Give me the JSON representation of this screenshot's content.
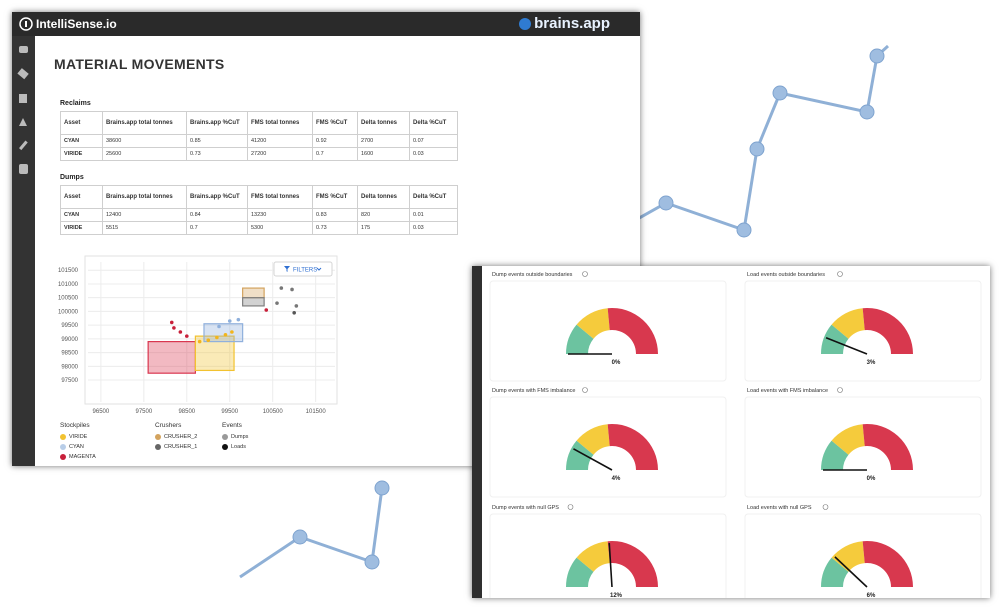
{
  "header": {
    "logo": "IntelliSense.io",
    "brand": "brains.app"
  },
  "page_title": "MATERIAL MOVEMENTS",
  "tables": [
    {
      "title": "Reclaims",
      "columns": [
        "Asset",
        "Brains.app total tonnes",
        "Brains.app %CuT",
        "FMS total tonnes",
        "FMS %CuT",
        "Delta tonnes",
        "Delta %CuT"
      ],
      "rows": [
        [
          "CYAN",
          "38600",
          "0.85",
          "41200",
          "0.92",
          "2700",
          "0.07"
        ],
        [
          "VIRIDE",
          "25600",
          "0.73",
          "27200",
          "0.7",
          "1600",
          "0.03"
        ]
      ]
    },
    {
      "title": "Dumps",
      "columns": [
        "Asset",
        "Brains.app total tonnes",
        "Brains.app %CuT",
        "FMS total tonnes",
        "FMS %CuT",
        "Delta tonnes",
        "Delta %CuT"
      ],
      "rows": [
        [
          "CYAN",
          "12400",
          "0.84",
          "13230",
          "0.83",
          "820",
          "0.01"
        ],
        [
          "VIRIDE",
          "5515",
          "0.7",
          "5300",
          "0.73",
          "175",
          "0.03"
        ]
      ]
    }
  ],
  "scatter": {
    "filter_button": "FILTERS",
    "xlim": [
      96200,
      101950
    ],
    "xticks": [
      96500,
      97500,
      98500,
      99500,
      100500,
      101500
    ],
    "ylim": [
      96700,
      101800
    ],
    "yticks": [
      97500,
      98000,
      98500,
      99000,
      99500,
      100000,
      100500,
      101000,
      101500
    ],
    "regions": [
      {
        "x": [
          97600,
          98700
        ],
        "y": [
          97750,
          98900
        ],
        "color": "#d9364f"
      },
      {
        "x": [
          98700,
          99600
        ],
        "y": [
          97850,
          99100
        ],
        "color": "#f2c230"
      },
      {
        "x": [
          98900,
          99800
        ],
        "y": [
          98900,
          99550
        ],
        "color": "#8fb0dc"
      },
      {
        "x": [
          99800,
          100300
        ],
        "y": [
          100500,
          100850
        ],
        "color": "#d3a35e"
      },
      {
        "x": [
          99800,
          100300
        ],
        "y": [
          100200,
          100500
        ],
        "color": "#7f7f7f"
      }
    ],
    "points": [
      {
        "x": 98200,
        "y": 99400,
        "color": "#c8203a"
      },
      {
        "x": 98350,
        "y": 99250,
        "color": "#c8203a"
      },
      {
        "x": 98500,
        "y": 99100,
        "color": "#c8203a"
      },
      {
        "x": 98150,
        "y": 99600,
        "color": "#c8203a"
      },
      {
        "x": 98800,
        "y": 98900,
        "color": "#f2b51c"
      },
      {
        "x": 99000,
        "y": 98950,
        "color": "#f2b51c"
      },
      {
        "x": 99200,
        "y": 99050,
        "color": "#f2b51c"
      },
      {
        "x": 99400,
        "y": 99150,
        "color": "#f2b51c"
      },
      {
        "x": 99550,
        "y": 99250,
        "color": "#f2b51c"
      },
      {
        "x": 99250,
        "y": 99450,
        "color": "#8fb0dc"
      },
      {
        "x": 99500,
        "y": 99650,
        "color": "#8fb0dc"
      },
      {
        "x": 99700,
        "y": 99700,
        "color": "#8fb0dc"
      },
      {
        "x": 100350,
        "y": 100050,
        "color": "#c8203a"
      },
      {
        "x": 100600,
        "y": 100300,
        "color": "#777777"
      },
      {
        "x": 100950,
        "y": 100800,
        "color": "#777777"
      },
      {
        "x": 101050,
        "y": 100200,
        "color": "#777777"
      },
      {
        "x": 101000,
        "y": 99950,
        "color": "#555555"
      },
      {
        "x": 100700,
        "y": 100850,
        "color": "#777777"
      }
    ],
    "legend": [
      {
        "title": "Stockpiles",
        "items": [
          {
            "label": "VIRIDE",
            "color": "#f2c230"
          },
          {
            "label": "CYAN",
            "color": "#b8cde8"
          },
          {
            "label": "MAGENTA",
            "color": "#c8203a"
          }
        ]
      },
      {
        "title": "Crushers",
        "items": [
          {
            "label": "CRUSHER_2",
            "color": "#d3a35e"
          },
          {
            "label": "CRUSHER_1",
            "color": "#666666"
          }
        ]
      },
      {
        "title": "Events",
        "items": [
          {
            "label": "Dumps",
            "color": "#999999"
          },
          {
            "label": "Loads",
            "color": "#111111"
          }
        ]
      }
    ]
  },
  "gauges": {
    "range": [
      0,
      25
    ],
    "panels": [
      {
        "title": "Dump events outside boundaries",
        "value": 0,
        "value_label": "0%"
      },
      {
        "title": "Load events outside boundaries",
        "value": 3,
        "value_label": "3%"
      },
      {
        "title": "Dump events with FMS imbalance",
        "value": 4,
        "value_label": "4%"
      },
      {
        "title": "Load events with FMS imbalance",
        "value": 0,
        "value_label": "0%"
      },
      {
        "title": "Dump events with null GPS",
        "value": 12,
        "value_label": "12%"
      },
      {
        "title": "Load events with null GPS",
        "value": 6,
        "value_label": "6%"
      }
    ]
  }
}
